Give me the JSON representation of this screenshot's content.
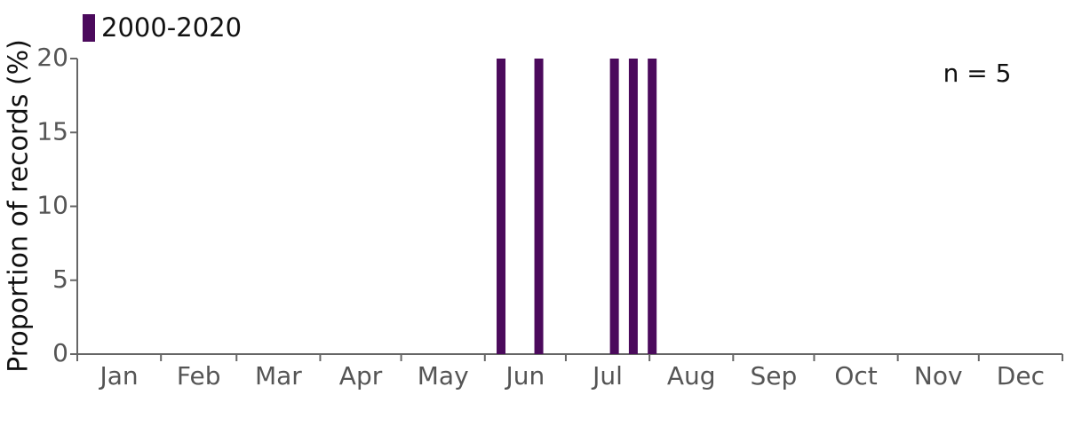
{
  "chart_data": {
    "type": "bar",
    "y_label": "Proportion of records (%)",
    "annotation": "n = 5",
    "categories": [
      "Jan",
      "Feb",
      "Mar",
      "Apr",
      "May",
      "Jun",
      "Jul",
      "Aug",
      "Sep",
      "Oct",
      "Nov",
      "Dec"
    ],
    "xticks": [
      0,
      31,
      59,
      90,
      120,
      151,
      181,
      212,
      243,
      273,
      304,
      334,
      365
    ],
    "xlim": [
      0,
      365
    ],
    "series": [
      {
        "name": "2000-2020",
        "color": "#4b0a5c",
        "x": [
          157,
          171,
          199,
          206,
          213
        ],
        "values": [
          20,
          20,
          20,
          20,
          20
        ]
      }
    ],
    "ylim": [
      0,
      20
    ],
    "yticks": [
      0,
      5,
      10,
      15,
      20
    ]
  }
}
